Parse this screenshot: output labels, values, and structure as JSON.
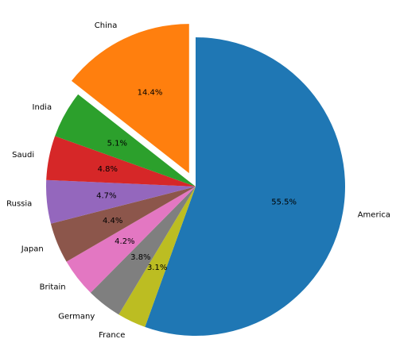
{
  "chart_data": {
    "type": "pie",
    "categories": [
      "America",
      "France",
      "Germany",
      "Britain",
      "Japan",
      "Russia",
      "Saudi",
      "India",
      "China"
    ],
    "values": [
      55.5,
      3.1,
      3.8,
      4.2,
      4.4,
      4.7,
      4.8,
      5.1,
      14.4
    ],
    "value_labels": [
      "55.5%",
      "3.1%",
      "3.8%",
      "4.2%",
      "4.4%",
      "4.7%",
      "4.8%",
      "5.1%",
      "14.4%"
    ],
    "colors": [
      "#1f77b4",
      "#bcbd22",
      "#7f7f7f",
      "#e377c2",
      "#8c564b",
      "#9467bd",
      "#d62728",
      "#2ca02c",
      "#ff7f0e"
    ],
    "explode": [
      0,
      0,
      0,
      0,
      0,
      0,
      0,
      0,
      0.1
    ],
    "startangle": 90,
    "counterclock": false
  }
}
